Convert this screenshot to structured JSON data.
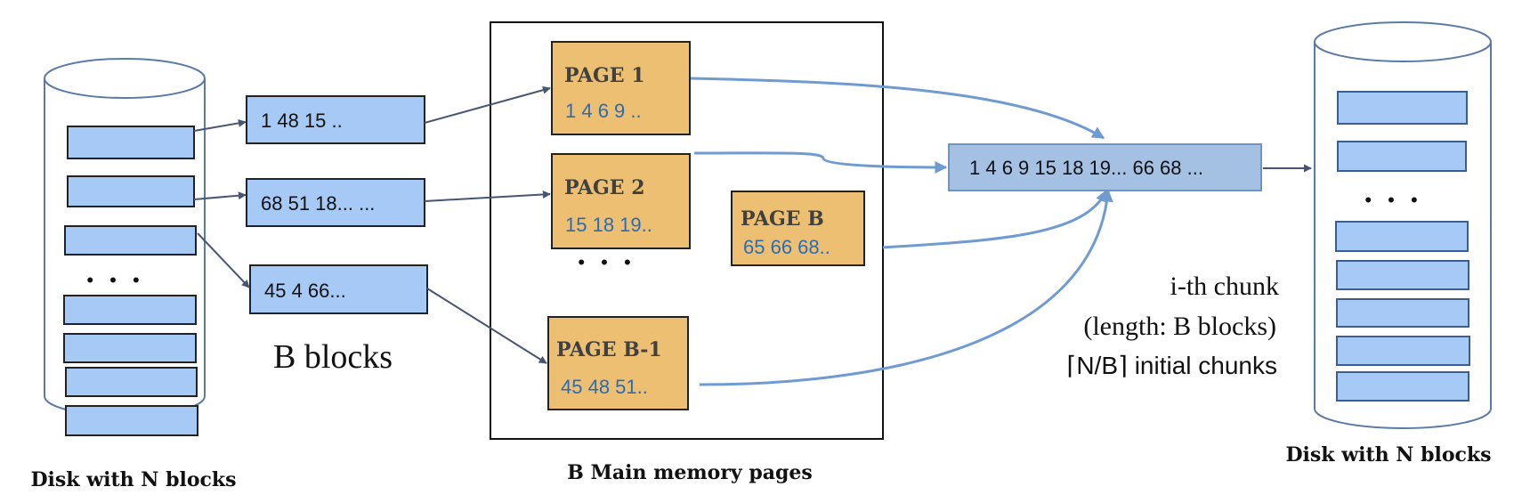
{
  "left_disk": {
    "caption": "Disk with N blocks",
    "ellipsis": "• • •"
  },
  "input_blocks": [
    {
      "text": "1 48 15 .."
    },
    {
      "text": "68 51 18... ..."
    },
    {
      "text": "45 4 66..."
    }
  ],
  "b_blocks_label": "B blocks",
  "memory": {
    "caption": "B Main memory pages",
    "ellipsis": "• • •",
    "pages": [
      {
        "title": "PAGE 1",
        "values": "1 4 6 9 .."
      },
      {
        "title": "PAGE 2",
        "values": "15 18 19.."
      },
      {
        "title": "PAGE B",
        "values": "65 66 68.."
      },
      {
        "title": "PAGE B-1",
        "values": "45 48 51.."
      }
    ]
  },
  "merged_chunk": {
    "text": "1 4 6 9 15 18 19... 66 68 ..."
  },
  "chunk_labels": {
    "line1": "i-th chunk",
    "line2": "(length: B blocks)",
    "line3": "⌈N/B⌉ initial chunks"
  },
  "right_disk": {
    "caption": "Disk with N blocks",
    "ellipsis": "• • •"
  },
  "colors": {
    "block_fill": "#a7c9f6",
    "page_fill": "#ecbf72",
    "page_value_text": "#2a6cb6",
    "merge_arrow": "#6f9bd1",
    "merged_fill": "#a4c0e2"
  }
}
